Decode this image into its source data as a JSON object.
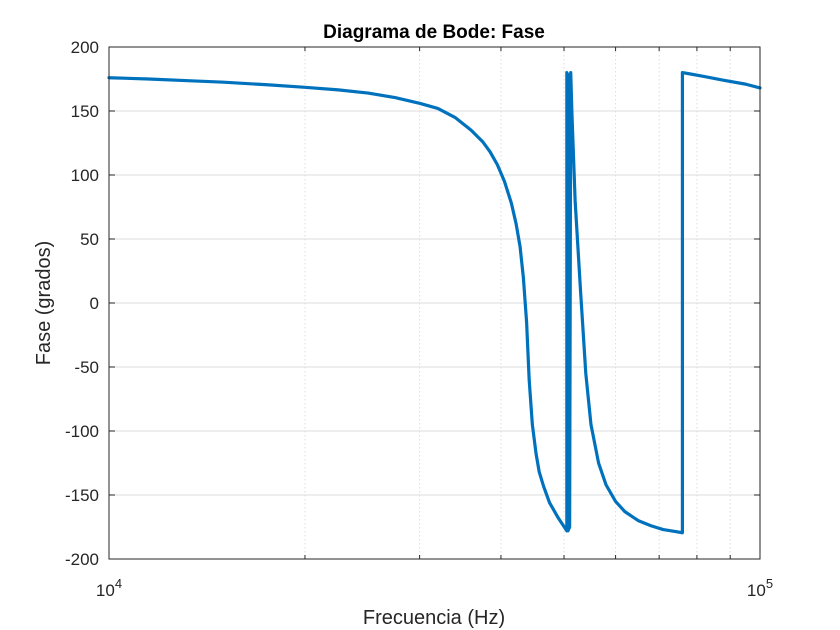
{
  "chart_data": {
    "type": "line",
    "title": "Diagrama de Bode: Fase",
    "xlabel": "Frecuencia (Hz)",
    "ylabel": "Fase (grados)",
    "xscale": "log",
    "xlim": [
      10000,
      100000
    ],
    "ylim": [
      -200,
      200
    ],
    "x_ticks": [
      {
        "value": 10000,
        "base": "10",
        "exp": "4"
      },
      {
        "value": 100000,
        "base": "10",
        "exp": "5"
      }
    ],
    "y_ticks": [
      200,
      150,
      100,
      50,
      0,
      -50,
      -100,
      -150,
      -200
    ],
    "y_tick_labels": [
      "200",
      "150",
      "100",
      "50",
      "0",
      "-50",
      "-100",
      "-150",
      "-200"
    ],
    "grid": true,
    "box": true,
    "colors": {
      "line": "#0072BD",
      "grid": "#dcdcdc",
      "axes": "#262626"
    },
    "series": [
      {
        "x": [
          10000,
          11500,
          13500,
          15000,
          17500,
          20000,
          22500,
          25000,
          27500,
          30000,
          32000,
          34000,
          36000,
          37500,
          38500,
          39500,
          40500,
          41500,
          42200,
          42800,
          43300,
          43800,
          44200,
          44700,
          45300,
          45800,
          46500,
          47500,
          49000,
          50500,
          50500,
          50700,
          50700,
          51000,
          51200,
          51200,
          51400,
          52000,
          53000,
          54000,
          55000,
          56500,
          58000,
          60000,
          62000,
          65000,
          68000,
          71000,
          74000,
          76000,
          76000,
          78000,
          82000,
          88000,
          95000,
          100000
        ],
        "y": [
          176,
          175,
          173.5,
          172.5,
          170.5,
          168.5,
          166.5,
          164,
          160.5,
          156,
          152,
          145,
          135,
          126,
          118,
          108,
          95,
          78,
          62,
          44,
          20,
          -15,
          -60,
          -95,
          -118,
          -132,
          -143,
          -156,
          -168,
          -178,
          180,
          178,
          -178,
          -175,
          180,
          180,
          150,
          80,
          10,
          -55,
          -95,
          -125,
          -142,
          -155,
          -163,
          -170,
          -174,
          -177,
          -178.5,
          -179.5,
          180,
          179,
          177,
          174,
          171,
          168
        ]
      }
    ]
  }
}
